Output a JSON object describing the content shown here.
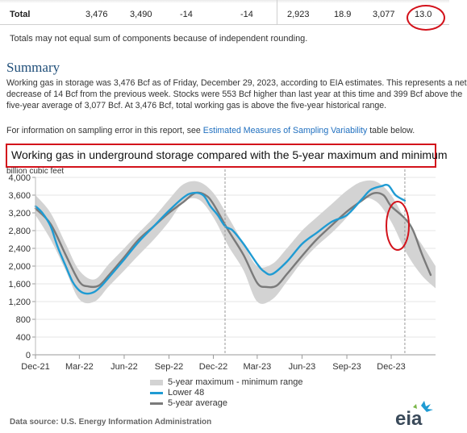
{
  "totals_row": {
    "label": "Total",
    "values": [
      "3,476",
      "3,490",
      "-14",
      "-14",
      "2,923",
      "18.9",
      "3,077",
      "13.0"
    ]
  },
  "footnote": "Totals may not equal sum of components because of independent rounding.",
  "summary": {
    "heading": "Summary",
    "lines": [
      "Working gas in storage was 3,476 Bcf as of Friday, December 29, 2023, according to EIA estimates. This represents a net",
      "decrease of 14 Bcf from the previous week. Stocks were 553 Bcf higher than last year at this time and 399 Bcf above the",
      "five-year average of 3,077 Bcf. At 3,476 Bcf, total working gas is above the five-year historical range."
    ],
    "info_prefix": "For information on sampling error in this report, see ",
    "info_link": "Estimated Measures of Sampling Variability",
    "info_suffix": " table below."
  },
  "annotation_color": "#d3121b",
  "chart_data": {
    "type": "line",
    "title": "Working gas in underground  storage compared with the 5-year maximum and minimum",
    "ylabel": "billion cubic feet",
    "ylim": [
      0,
      4000
    ],
    "yticks": [
      0,
      400,
      800,
      1200,
      1600,
      2000,
      2400,
      2800,
      3200,
      3600,
      4000
    ],
    "ytick_labels": [
      "0",
      "400",
      "800",
      "1,200",
      "1,600",
      "2,000",
      "2,400",
      "2,800",
      "3,200",
      "3,600",
      "4,000"
    ],
    "xlim": [
      "2021-12-01",
      "2024-03-01"
    ],
    "xtick_labels": [
      "Dec-21",
      "Mar-22",
      "Jun-22",
      "Sep-22",
      "Dec-22",
      "Mar-23",
      "Jun-23",
      "Sep-23",
      "Dec-23"
    ],
    "xtick_dates": [
      "2021-12-01",
      "2022-03-01",
      "2022-06-01",
      "2022-09-01",
      "2022-12-01",
      "2023-03-01",
      "2023-06-01",
      "2023-09-01",
      "2023-12-01"
    ],
    "grid": true,
    "legend_position": "bottom-center",
    "series": [
      {
        "name": "5-year maximum - minimum range",
        "kind": "band",
        "color": "#d3d3d3",
        "x": [
          "2021-12-01",
          "2022-01-01",
          "2022-02-01",
          "2022-03-01",
          "2022-04-01",
          "2022-05-01",
          "2022-06-01",
          "2022-07-01",
          "2022-08-01",
          "2022-09-01",
          "2022-10-01",
          "2022-11-01",
          "2022-12-01",
          "2023-01-01",
          "2023-02-01",
          "2023-03-01",
          "2023-04-01",
          "2023-05-01",
          "2023-06-01",
          "2023-07-01",
          "2023-08-01",
          "2023-09-01",
          "2023-10-01",
          "2023-11-01",
          "2023-12-01",
          "2024-01-01",
          "2024-02-01",
          "2024-03-01"
        ],
        "low": [
          3150,
          2600,
          1900,
          1250,
          1200,
          1550,
          1900,
          2250,
          2600,
          3000,
          3450,
          3500,
          3100,
          2450,
          1900,
          1200,
          1250,
          1650,
          2100,
          2450,
          2750,
          3100,
          3500,
          3450,
          3000,
          2300,
          1800,
          1500
        ],
        "high": [
          3600,
          3200,
          2500,
          1900,
          1700,
          2050,
          2400,
          2750,
          3100,
          3500,
          3850,
          3900,
          3650,
          3100,
          2500,
          2000,
          2050,
          2400,
          2800,
          3100,
          3400,
          3700,
          3900,
          3900,
          3600,
          3000,
          2500,
          2000
        ]
      },
      {
        "name": "Lower 48",
        "color": "#1f9bd3",
        "x": [
          "2021-12-01",
          "2021-12-15",
          "2022-01-01",
          "2022-01-15",
          "2022-02-01",
          "2022-02-15",
          "2022-03-01",
          "2022-03-15",
          "2022-04-01",
          "2022-04-15",
          "2022-05-01",
          "2022-06-01",
          "2022-07-01",
          "2022-08-01",
          "2022-09-01",
          "2022-10-01",
          "2022-10-20",
          "2022-11-10",
          "2022-11-25",
          "2022-12-10",
          "2022-12-25",
          "2023-01-10",
          "2023-02-01",
          "2023-03-01",
          "2023-03-15",
          "2023-04-01",
          "2023-05-01",
          "2023-06-01",
          "2023-07-01",
          "2023-08-01",
          "2023-09-01",
          "2023-10-01",
          "2023-10-20",
          "2023-11-10",
          "2023-11-25",
          "2023-12-10",
          "2023-12-29"
        ],
        "values": [
          3350,
          3200,
          2900,
          2450,
          2000,
          1650,
          1450,
          1380,
          1420,
          1550,
          1750,
          2150,
          2550,
          2900,
          3250,
          3550,
          3650,
          3600,
          3350,
          3150,
          2900,
          2800,
          2500,
          2050,
          1880,
          1820,
          2100,
          2500,
          2750,
          3000,
          3150,
          3500,
          3720,
          3800,
          3820,
          3600,
          3476
        ]
      },
      {
        "name": "5-year average",
        "color": "#7a7a7a",
        "x": [
          "2021-12-01",
          "2022-01-01",
          "2022-02-01",
          "2022-03-01",
          "2022-03-20",
          "2022-04-10",
          "2022-05-01",
          "2022-06-01",
          "2022-07-01",
          "2022-08-01",
          "2022-09-01",
          "2022-10-01",
          "2022-10-25",
          "2022-11-15",
          "2022-12-01",
          "2023-01-01",
          "2023-02-01",
          "2023-03-01",
          "2023-03-20",
          "2023-04-10",
          "2023-05-01",
          "2023-06-01",
          "2023-07-01",
          "2023-08-01",
          "2023-09-01",
          "2023-10-01",
          "2023-10-25",
          "2023-11-15",
          "2023-12-01",
          "2023-12-29",
          "2024-01-15",
          "2024-02-01",
          "2024-02-20"
        ],
        "values": [
          3300,
          2950,
          2250,
          1650,
          1540,
          1560,
          1800,
          2200,
          2600,
          2900,
          3200,
          3450,
          3650,
          3600,
          3400,
          2800,
          2250,
          1620,
          1530,
          1560,
          1820,
          2230,
          2600,
          2920,
          3230,
          3470,
          3640,
          3600,
          3350,
          3077,
          2800,
          2300,
          1800
        ]
      }
    ],
    "markers": [
      {
        "date": "2022-12-25",
        "style": "dashed"
      },
      {
        "date": "2023-12-29",
        "style": "dashed"
      }
    ]
  },
  "source_text": "Data source:  U.S. Energy Information Administration",
  "logo_text": "eia"
}
